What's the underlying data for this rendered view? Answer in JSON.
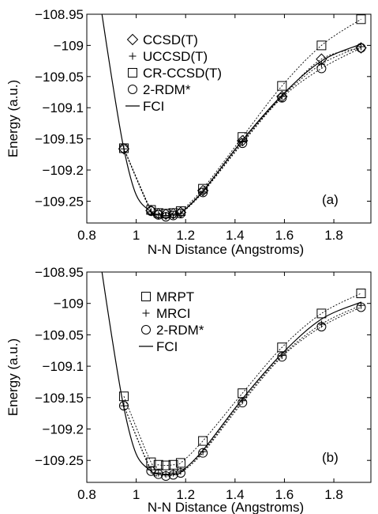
{
  "chart_data": [
    {
      "type": "line",
      "panel_label": "(a)",
      "xlabel": "N-N Distance (Angstroms)",
      "ylabel": "Energy (a.u.)",
      "xlim": [
        0.8,
        1.95
      ],
      "ylim": [
        -109.285,
        -108.95
      ],
      "xticks": [
        0.8,
        1.0,
        1.2,
        1.4,
        1.6,
        1.8
      ],
      "xtick_labels": [
        "0.8",
        "1",
        "1.2",
        "1.4",
        "1.6",
        "1.8"
      ],
      "yticks": [
        -108.95,
        -109.0,
        -109.05,
        -109.1,
        -109.15,
        -109.2,
        -109.25
      ],
      "ytick_labels": [
        "−108.95",
        "−109",
        "−109.05",
        "−109.1",
        "−109.15",
        "−109.2",
        "−109.25"
      ],
      "legend_position": "top-left",
      "series": [
        {
          "name": "CCSD(T)",
          "marker": "diamond",
          "line": "dotted",
          "x": [
            0.95,
            1.06,
            1.09,
            1.12,
            1.15,
            1.18,
            1.27,
            1.43,
            1.59,
            1.75,
            1.91
          ],
          "y": [
            -109.166,
            -109.265,
            -109.27,
            -109.271,
            -109.27,
            -109.268,
            -109.233,
            -109.153,
            -109.082,
            -109.022,
            -109.004
          ]
        },
        {
          "name": "UCCSD(T)",
          "marker": "plus",
          "line": "dotted",
          "x": [
            0.95,
            1.06,
            1.09,
            1.12,
            1.15,
            1.18,
            1.27,
            1.43,
            1.59,
            1.75,
            1.91
          ],
          "y": [
            -109.166,
            -109.267,
            -109.272,
            -109.273,
            -109.272,
            -109.27,
            -109.235,
            -109.155,
            -109.082,
            -109.03,
            -109.002
          ]
        },
        {
          "name": "CR-CCSD(T)",
          "marker": "square",
          "line": "dotted",
          "x": [
            0.95,
            1.06,
            1.09,
            1.12,
            1.15,
            1.18,
            1.27,
            1.43,
            1.59,
            1.75,
            1.91
          ],
          "y": [
            -109.165,
            -109.264,
            -109.269,
            -109.27,
            -109.269,
            -109.266,
            -109.23,
            -109.147,
            -109.065,
            -109.0,
            -108.958
          ]
        },
        {
          "name": "2-RDM*",
          "marker": "circle",
          "line": "dotted",
          "x": [
            0.95,
            1.06,
            1.09,
            1.12,
            1.15,
            1.18,
            1.27,
            1.43,
            1.59,
            1.75,
            1.91
          ],
          "y": [
            -109.165,
            -109.266,
            -109.272,
            -109.275,
            -109.273,
            -109.27,
            -109.236,
            -109.157,
            -109.084,
            -109.037,
            -109.004
          ]
        },
        {
          "name": "FCI",
          "marker": "none",
          "line": "solid",
          "x": [
            0.85,
            0.9,
            0.95,
            1.0,
            1.06,
            1.09,
            1.12,
            1.15,
            1.18,
            1.27,
            1.43,
            1.59,
            1.75,
            1.91
          ],
          "y": [
            -108.92,
            -109.05,
            -109.166,
            -109.24,
            -109.267,
            -109.272,
            -109.273,
            -109.272,
            -109.269,
            -109.234,
            -109.152,
            -109.08,
            -109.025,
            -108.998
          ]
        }
      ]
    },
    {
      "type": "line",
      "panel_label": "(b)",
      "xlabel": "N-N Distance (Angstroms)",
      "ylabel": "Energy (a.u.)",
      "xlim": [
        0.8,
        1.95
      ],
      "ylim": [
        -109.285,
        -108.95
      ],
      "xticks": [
        0.8,
        1.0,
        1.2,
        1.4,
        1.6,
        1.8
      ],
      "xtick_labels": [
        "0.8",
        "1",
        "1.2",
        "1.4",
        "1.6",
        "1.8"
      ],
      "yticks": [
        -108.95,
        -109.0,
        -109.05,
        -109.1,
        -109.15,
        -109.2,
        -109.25
      ],
      "ytick_labels": [
        "−108.95",
        "−109",
        "−109.05",
        "−109.1",
        "−109.15",
        "−109.2",
        "−109.25"
      ],
      "legend_position": "top-left",
      "series": [
        {
          "name": "MRPT",
          "marker": "square",
          "line": "dotted",
          "x": [
            0.95,
            1.06,
            1.09,
            1.12,
            1.15,
            1.18,
            1.27,
            1.43,
            1.59,
            1.75,
            1.91
          ],
          "y": [
            -109.148,
            -109.253,
            -109.257,
            -109.258,
            -109.257,
            -109.254,
            -109.219,
            -109.143,
            -109.07,
            -109.016,
            -108.984
          ]
        },
        {
          "name": "MRCI",
          "marker": "plus",
          "line": "dotted",
          "x": [
            0.95,
            1.06,
            1.09,
            1.12,
            1.15,
            1.18,
            1.27,
            1.43,
            1.59,
            1.75,
            1.91
          ],
          "y": [
            -109.163,
            -109.265,
            -109.27,
            -109.272,
            -109.27,
            -109.267,
            -109.236,
            -109.155,
            -109.083,
            -109.033,
            -109.003
          ]
        },
        {
          "name": "2-RDM*",
          "marker": "circle",
          "line": "dotted",
          "x": [
            0.95,
            1.06,
            1.09,
            1.12,
            1.15,
            1.18,
            1.27,
            1.43,
            1.59,
            1.75,
            1.91
          ],
          "y": [
            -109.163,
            -109.267,
            -109.272,
            -109.275,
            -109.273,
            -109.27,
            -109.238,
            -109.158,
            -109.085,
            -109.037,
            -109.006
          ]
        },
        {
          "name": "FCI",
          "marker": "none",
          "line": "solid",
          "x": [
            0.85,
            0.9,
            0.95,
            1.0,
            1.06,
            1.09,
            1.12,
            1.15,
            1.18,
            1.27,
            1.43,
            1.59,
            1.75,
            1.91
          ],
          "y": [
            -108.92,
            -109.05,
            -109.166,
            -109.24,
            -109.267,
            -109.272,
            -109.273,
            -109.272,
            -109.269,
            -109.234,
            -109.152,
            -109.08,
            -109.025,
            -108.998
          ]
        }
      ]
    }
  ]
}
